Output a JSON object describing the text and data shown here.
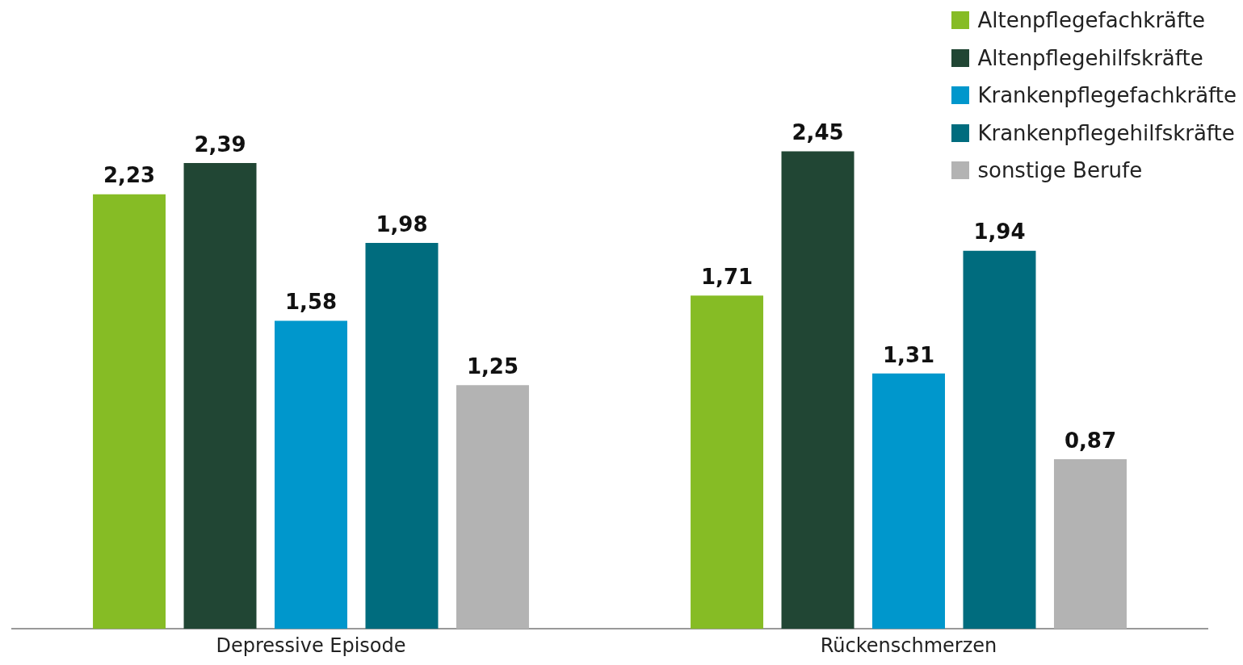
{
  "chart_data": {
    "type": "bar",
    "categories": [
      "Depressive Episode",
      "Rückenschmerzen"
    ],
    "series": [
      {
        "name": "Altenpflegefachkräfte",
        "color": "#86bc25",
        "values": [
          2.23,
          1.71
        ],
        "value_labels": [
          "2,23",
          "1,71"
        ]
      },
      {
        "name": "Altenpflegehilfskräfte",
        "color": "#214634",
        "values": [
          2.39,
          2.45
        ],
        "value_labels": [
          "2,39",
          "2,45"
        ]
      },
      {
        "name": "Krankenpflegefachkräfte",
        "color": "#0097cc",
        "values": [
          1.58,
          1.31
        ],
        "value_labels": [
          "1,58",
          "1,31"
        ]
      },
      {
        "name": "Krankenpflegehilfskräfte",
        "color": "#006c7e",
        "values": [
          1.98,
          1.94
        ],
        "value_labels": [
          "1,98",
          "1,94"
        ]
      },
      {
        "name": "sonstige Berufe",
        "color": "#b3b3b3",
        "values": [
          1.25,
          0.87
        ],
        "value_labels": [
          "1,25",
          "0,87"
        ]
      }
    ],
    "legend": "top right"
  }
}
